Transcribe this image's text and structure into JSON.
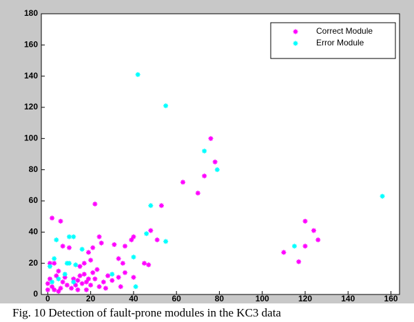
{
  "chart_data": {
    "type": "scatter",
    "caption": "Fig. 10 Detection of fault-prone modules in the KC3 data",
    "xlim": [
      -3,
      164
    ],
    "xticks": [
      0,
      20,
      40,
      60,
      80,
      100,
      120,
      140,
      160
    ],
    "ylim": [
      0,
      180
    ],
    "yticks": [
      0,
      20,
      40,
      60,
      80,
      100,
      120,
      140,
      160,
      180
    ],
    "legend": "top-right",
    "series": [
      {
        "name": "Correct Module",
        "color": "#ff00ff",
        "x": [
          76,
          78,
          73,
          63,
          70,
          53,
          48,
          51,
          47,
          45,
          2,
          6,
          22,
          40,
          39,
          36,
          33,
          35,
          31,
          24,
          25,
          21,
          19,
          20,
          17,
          15,
          10,
          7,
          3,
          1,
          110,
          117,
          120,
          120,
          124,
          126,
          5,
          4,
          8,
          12,
          14,
          16,
          18,
          20,
          22,
          24,
          26,
          28,
          30,
          33,
          34,
          36,
          40,
          2,
          3,
          6,
          9,
          11,
          13,
          15,
          17,
          19,
          21,
          23,
          1,
          0,
          0,
          5,
          7,
          27,
          14,
          18
        ],
        "values": [
          100,
          85,
          76,
          72,
          65,
          57,
          41,
          35,
          19,
          20,
          49,
          47,
          58,
          37,
          35,
          31,
          23,
          20,
          32,
          37,
          33,
          30,
          27,
          22,
          20,
          18,
          30,
          31,
          20,
          20,
          27,
          21,
          47,
          31,
          41,
          35,
          15,
          12,
          11,
          10,
          9,
          7,
          8,
          6,
          10,
          5,
          8,
          12,
          9,
          11,
          5,
          14,
          11,
          5,
          3,
          4,
          6,
          4,
          6,
          12,
          13,
          10,
          14,
          16,
          10,
          3,
          7,
          2,
          8,
          4,
          3,
          3
        ]
      },
      {
        "name": "Error Module",
        "color": "#00ffff",
        "x": [
          42,
          55,
          73,
          79,
          156,
          48,
          46,
          55,
          115,
          3,
          10,
          12,
          1,
          4,
          10,
          13,
          16,
          30,
          40,
          41,
          2,
          5,
          8,
          12,
          9
        ],
        "values": [
          141,
          121,
          92,
          80,
          63,
          57,
          39,
          34,
          31,
          23,
          37,
          37,
          18,
          35,
          20,
          19,
          29,
          13,
          24,
          5,
          8,
          10,
          13,
          8,
          20
        ]
      }
    ]
  }
}
